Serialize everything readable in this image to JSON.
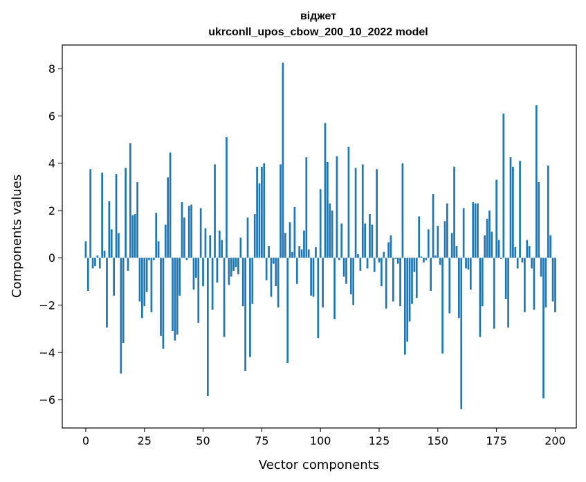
{
  "chart_data": {
    "type": "bar",
    "title_line1": "віджет",
    "title_line2": "ukrconll_upos_cbow_200_10_2022 model",
    "xlabel": "Vector components",
    "ylabel": "Components values",
    "xlim": [
      -10,
      209
    ],
    "ylim": [
      -7.2,
      9.0
    ],
    "xticks": [
      0,
      25,
      50,
      75,
      100,
      125,
      150,
      175,
      200
    ],
    "xtick_labels": [
      "0",
      "25",
      "50",
      "75",
      "100",
      "125",
      "150",
      "175",
      "200"
    ],
    "yticks": [
      -6,
      -4,
      -2,
      0,
      2,
      4,
      6,
      8
    ],
    "ytick_labels": [
      "−6",
      "−4",
      "−2",
      "0",
      "2",
      "4",
      "6",
      "8"
    ],
    "bar_color": "#1f77b4",
    "values": [
      0.7,
      -1.4,
      3.75,
      -0.45,
      -0.35,
      0.1,
      -0.45,
      3.6,
      0.3,
      -2.95,
      2.4,
      1.2,
      -1.6,
      3.55,
      1.05,
      -4.9,
      -3.6,
      3.8,
      -0.55,
      4.85,
      1.8,
      1.85,
      3.2,
      -1.85,
      -2.55,
      -2.05,
      -1.45,
      -0.1,
      -2.3,
      -0.1,
      1.9,
      0.7,
      -3.3,
      -3.85,
      1.4,
      3.4,
      4.45,
      -3.1,
      -3.5,
      -3.25,
      -1.6,
      2.35,
      1.7,
      -0.1,
      2.2,
      2.25,
      -1.35,
      -0.85,
      -2.75,
      2.1,
      -1.2,
      1.25,
      -5.85,
      0.95,
      -2.2,
      3.95,
      -1.05,
      1.15,
      0.75,
      -3.35,
      5.1,
      -1.15,
      -0.8,
      -0.55,
      -0.4,
      -0.7,
      0.85,
      -2.05,
      -4.8,
      1.7,
      -4.2,
      -1.95,
      1.85,
      3.85,
      3.15,
      3.85,
      4.0,
      -0.95,
      0.5,
      -1.65,
      -0.25,
      -1.2,
      -2.1,
      3.95,
      8.25,
      1.05,
      -4.45,
      1.5,
      0.25,
      2.15,
      -1.1,
      0.5,
      0.35,
      1.15,
      4.25,
      0.35,
      -1.6,
      -1.65,
      0.45,
      -3.4,
      2.9,
      -2.1,
      5.7,
      4.05,
      2.3,
      2.0,
      -2.6,
      4.3,
      -0.1,
      1.45,
      -0.8,
      -1.1,
      4.7,
      -1.55,
      -2.0,
      3.8,
      0.15,
      -0.55,
      3.95,
      1.45,
      -0.45,
      1.85,
      1.4,
      -0.6,
      3.75,
      -0.2,
      -1.2,
      0.25,
      -2.15,
      0.65,
      0.95,
      -1.85,
      -0.05,
      -0.25,
      -2.05,
      4.0,
      -4.1,
      -3.55,
      -2.7,
      -1.95,
      -0.6,
      -1.7,
      1.75,
      0.05,
      -0.2,
      -0.1,
      1.2,
      -1.4,
      2.7,
      0.1,
      1.35,
      -0.3,
      -4.05,
      1.55,
      2.3,
      -2.35,
      1.05,
      3.85,
      0.5,
      -2.55,
      -6.4,
      2.1,
      -0.45,
      -0.5,
      -1.35,
      2.35,
      2.3,
      2.3,
      -3.35,
      -2.05,
      0.95,
      1.65,
      2.0,
      1.1,
      -3.0,
      3.3,
      0.75,
      -0.05,
      6.1,
      -1.75,
      -2.95,
      4.25,
      3.85,
      0.45,
      -0.45,
      4.1,
      -0.2,
      -2.3,
      0.75,
      0.5,
      -0.45,
      -2.2,
      6.45,
      3.2,
      -0.8,
      -5.95,
      -2.1,
      3.9,
      0.95,
      -1.85,
      -2.3
    ]
  }
}
